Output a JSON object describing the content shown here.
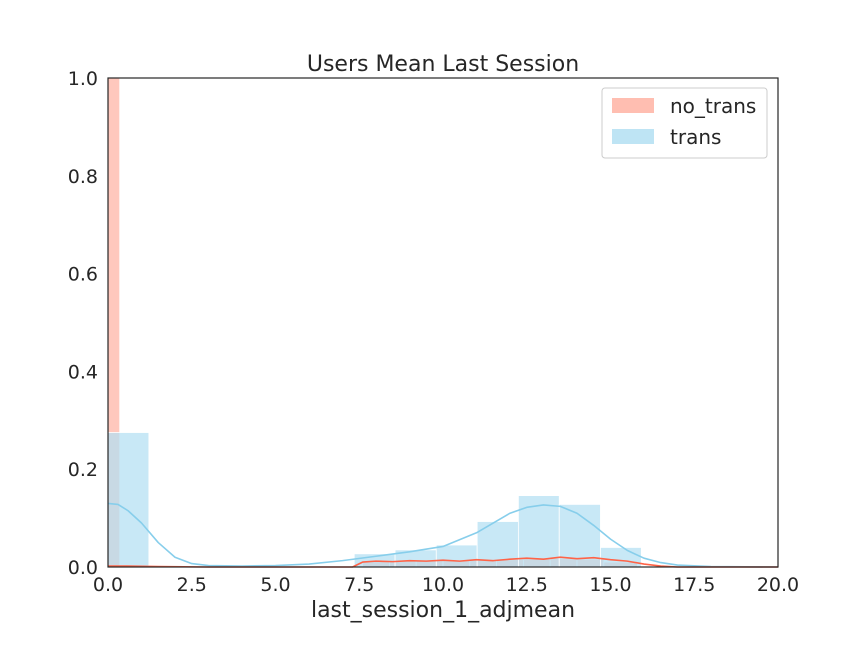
{
  "chart_data": {
    "type": "histogram",
    "title": "Users Mean Last Session",
    "xlabel": "last_session_1_adjmean",
    "ylabel": "",
    "xlim": [
      0.0,
      20.0
    ],
    "ylim": [
      0.0,
      1.0
    ],
    "xticks": [
      "0.0",
      "2.5",
      "5.0",
      "7.5",
      "10.0",
      "12.5",
      "15.0",
      "17.5",
      "20.0"
    ],
    "yticks": [
      "0.0",
      "0.2",
      "0.4",
      "0.6",
      "0.8",
      "1.0"
    ],
    "grid": false,
    "legend_position": "top-right",
    "series": [
      {
        "name": "no_trans",
        "color": "#ff6347",
        "bar_color": "#ffb3a3",
        "bins": [
          {
            "x0": 0.0,
            "x1": 0.35,
            "value": 1.0
          },
          {
            "x0": 7.6,
            "x1": 8.4,
            "value": 0.012
          },
          {
            "x0": 8.4,
            "x1": 9.2,
            "value": 0.012
          },
          {
            "x0": 9.2,
            "x1": 10.0,
            "value": 0.013
          },
          {
            "x0": 10.0,
            "x1": 10.8,
            "value": 0.013
          },
          {
            "x0": 10.8,
            "x1": 11.6,
            "value": 0.014
          },
          {
            "x0": 11.6,
            "x1": 12.4,
            "value": 0.015
          },
          {
            "x0": 12.4,
            "x1": 13.2,
            "value": 0.016
          },
          {
            "x0": 13.2,
            "x1": 14.0,
            "value": 0.017
          },
          {
            "x0": 14.0,
            "x1": 14.8,
            "value": 0.016
          },
          {
            "x0": 14.8,
            "x1": 15.8,
            "value": 0.01
          }
        ],
        "kde": [
          [
            0.0,
            0.002
          ],
          [
            0.5,
            0.002
          ],
          [
            1.5,
            0.001
          ],
          [
            3.0,
            0.0
          ],
          [
            6.0,
            0.0
          ],
          [
            7.3,
            0.0
          ],
          [
            7.6,
            0.01
          ],
          [
            8.0,
            0.012
          ],
          [
            8.5,
            0.011
          ],
          [
            9.0,
            0.013
          ],
          [
            9.5,
            0.012
          ],
          [
            10.0,
            0.014
          ],
          [
            10.5,
            0.012
          ],
          [
            11.0,
            0.015
          ],
          [
            11.5,
            0.013
          ],
          [
            12.0,
            0.016
          ],
          [
            12.5,
            0.018
          ],
          [
            13.0,
            0.016
          ],
          [
            13.5,
            0.02
          ],
          [
            14.0,
            0.017
          ],
          [
            14.5,
            0.019
          ],
          [
            15.0,
            0.015
          ],
          [
            15.5,
            0.012
          ],
          [
            16.0,
            0.006
          ],
          [
            16.5,
            0.002
          ],
          [
            17.0,
            0.0
          ],
          [
            20.0,
            0.0
          ]
        ]
      },
      {
        "name": "trans",
        "color": "#87ceeb",
        "bar_color": "#b3dff2",
        "bins": [
          {
            "x0": 0.0,
            "x1": 1.22,
            "value": 0.275
          },
          {
            "x0": 7.35,
            "x1": 8.57,
            "value": 0.027
          },
          {
            "x0": 8.57,
            "x1": 9.8,
            "value": 0.035
          },
          {
            "x0": 9.8,
            "x1": 11.02,
            "value": 0.045
          },
          {
            "x0": 11.02,
            "x1": 12.25,
            "value": 0.093
          },
          {
            "x0": 12.25,
            "x1": 13.47,
            "value": 0.146
          },
          {
            "x0": 13.47,
            "x1": 14.7,
            "value": 0.128
          },
          {
            "x0": 14.7,
            "x1": 15.92,
            "value": 0.04
          }
        ],
        "kde": [
          [
            0.0,
            0.13
          ],
          [
            0.3,
            0.128
          ],
          [
            0.6,
            0.115
          ],
          [
            1.0,
            0.09
          ],
          [
            1.5,
            0.05
          ],
          [
            2.0,
            0.02
          ],
          [
            2.5,
            0.007
          ],
          [
            3.0,
            0.003
          ],
          [
            4.0,
            0.002
          ],
          [
            5.0,
            0.003
          ],
          [
            6.0,
            0.006
          ],
          [
            7.0,
            0.013
          ],
          [
            8.0,
            0.022
          ],
          [
            9.0,
            0.031
          ],
          [
            10.0,
            0.042
          ],
          [
            11.0,
            0.07
          ],
          [
            12.0,
            0.11
          ],
          [
            12.5,
            0.122
          ],
          [
            13.0,
            0.127
          ],
          [
            13.5,
            0.124
          ],
          [
            14.0,
            0.11
          ],
          [
            14.5,
            0.085
          ],
          [
            15.0,
            0.057
          ],
          [
            15.5,
            0.034
          ],
          [
            16.0,
            0.018
          ],
          [
            16.5,
            0.009
          ],
          [
            17.0,
            0.004
          ],
          [
            18.0,
            0.001
          ],
          [
            20.0,
            0.0
          ]
        ]
      }
    ]
  }
}
